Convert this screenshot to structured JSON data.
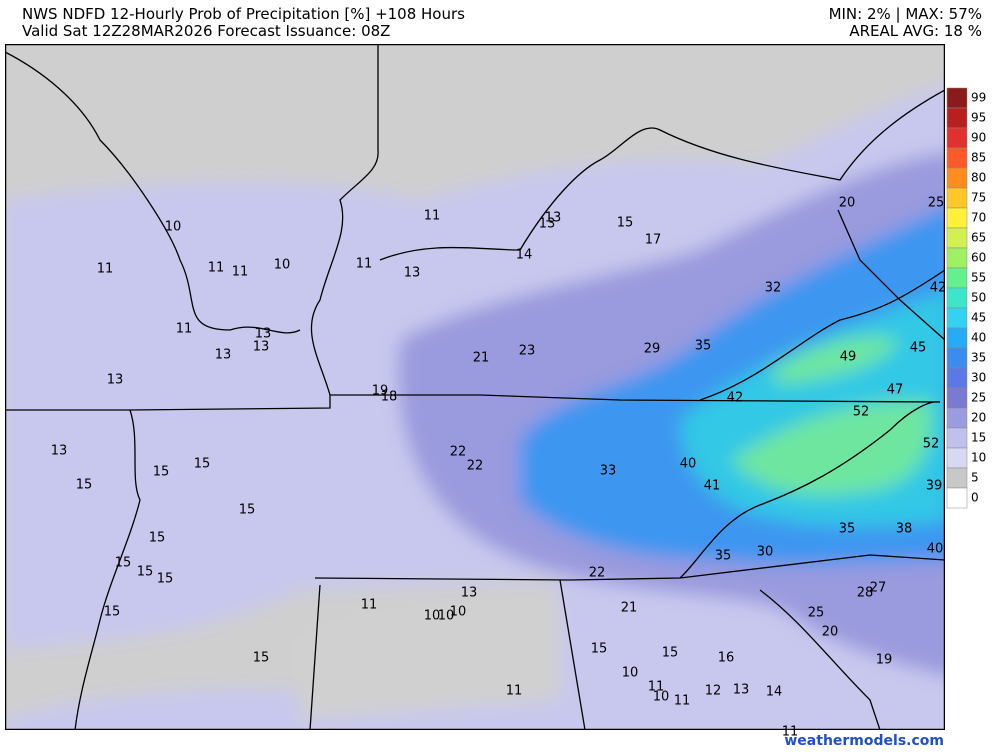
{
  "header": {
    "title": "NWS NDFD 12-Hourly Prob of Precipitation [%] +108 Hours",
    "subtitle": "Valid Sat 12Z28MAR2026   Forecast Issuance: 08Z",
    "minmax": "MIN: 2% | MAX: 57%",
    "areal_avg": "AREAL AVG: 18 %"
  },
  "legend": {
    "levels": [
      99,
      95,
      90,
      85,
      80,
      75,
      70,
      65,
      60,
      55,
      50,
      45,
      40,
      35,
      30,
      25,
      20,
      15,
      10,
      5,
      0
    ],
    "colors": [
      "#8b1a1a",
      "#b82020",
      "#e03030",
      "#ff5a28",
      "#ff8c1e",
      "#ffc828",
      "#fff03c",
      "#d2f050",
      "#a0f064",
      "#64f08c",
      "#3ce6c8",
      "#32d2f0",
      "#28aaf5",
      "#3c8cf0",
      "#5a78e6",
      "#7a7ad2",
      "#9b9be0",
      "#c0c0ee",
      "#d8d8f4",
      "#c8c8c8",
      "#ffffff"
    ]
  },
  "map": {
    "point_labels": [
      10,
      11,
      11,
      11,
      10,
      11,
      13,
      13,
      15,
      17,
      14,
      11,
      13,
      11,
      13,
      13,
      13,
      13,
      21,
      23,
      29,
      35,
      32,
      20,
      25,
      42,
      49,
      45,
      47,
      42,
      19,
      18,
      52,
      52,
      13,
      15,
      15,
      15,
      22,
      22,
      33,
      40,
      41,
      39,
      15,
      15,
      35,
      38,
      40,
      35,
      30,
      15,
      15,
      15,
      22,
      27,
      28,
      13,
      11,
      10,
      10,
      10,
      21,
      15,
      25,
      20,
      15,
      15,
      16,
      19,
      15,
      10,
      11,
      10,
      11,
      12,
      13,
      14,
      11,
      11
    ]
  },
  "footer": {
    "credit": "weathermodels.com"
  }
}
